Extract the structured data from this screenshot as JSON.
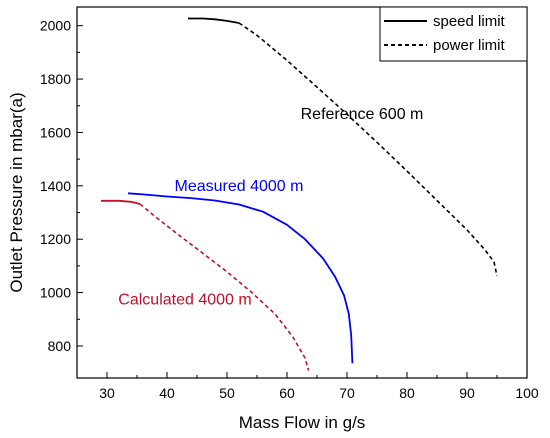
{
  "chart_data": {
    "type": "line",
    "title": "",
    "xlabel": "Mass Flow in g/s",
    "ylabel": "Outlet Pressure in mbar(a)",
    "xlim": [
      25,
      100
    ],
    "ylim": [
      680,
      2070
    ],
    "xticks": [
      30,
      40,
      50,
      60,
      70,
      80,
      90,
      100
    ],
    "yticks": [
      800,
      1000,
      1200,
      1400,
      1600,
      1800,
      2000
    ],
    "grid": false,
    "legend": {
      "placement": "top-right",
      "entries": [
        {
          "label": "speed limit",
          "style": "solid"
        },
        {
          "label": "power limit",
          "style": "dashed"
        }
      ]
    },
    "series": [
      {
        "annotation": "Reference 600 m",
        "color": "#000000",
        "style": "solid",
        "x": [
          43.5,
          46.0,
          48.0,
          50.0,
          52.0
        ],
        "y": [
          2027,
          2027,
          2024,
          2018,
          2010
        ]
      },
      {
        "annotation": "Reference 600 m",
        "color": "#000000",
        "style": "dashed",
        "x": [
          52.0,
          55.0,
          60.0,
          65.0,
          70.0,
          75.0,
          80.0,
          85.0,
          90.0,
          93.0,
          94.5,
          95.0
        ],
        "y": [
          2010,
          1964,
          1870,
          1770,
          1668,
          1563,
          1455,
          1345,
          1235,
          1160,
          1115,
          1062
        ]
      },
      {
        "annotation": "Measured 4000 m",
        "color": "#0000ff",
        "style": "solid",
        "x": [
          33.5,
          36.0,
          40.0,
          44.0,
          48.0,
          52.0,
          56.0,
          60.0,
          63.0,
          66.0,
          68.0,
          69.5,
          70.3,
          70.7,
          70.9
        ],
        "y": [
          1372,
          1368,
          1360,
          1354,
          1345,
          1330,
          1303,
          1254,
          1200,
          1128,
          1060,
          990,
          920,
          840,
          735
        ]
      },
      {
        "annotation": "Calculated 4000 m",
        "color": "#c0102a",
        "style": "solid",
        "x": [
          29.0,
          32.0,
          34.0,
          35.5
        ],
        "y": [
          1344,
          1344,
          1340,
          1332
        ]
      },
      {
        "annotation": "Calculated 4000 m",
        "color": "#c0102a",
        "style": "dashed",
        "x": [
          35.5,
          38.0,
          42.0,
          46.0,
          50.0,
          54.0,
          58.0,
          61.0,
          63.0,
          63.6
        ],
        "y": [
          1332,
          1285,
          1215,
          1147,
          1078,
          1003,
          920,
          833,
          755,
          708
        ]
      }
    ],
    "annotations": [
      {
        "text": "Reference 600 m",
        "x": 72.5,
        "y": 1650,
        "color": "#000000"
      },
      {
        "text": "Measured 4000 m",
        "x": 52.0,
        "y": 1380,
        "color": "#0000ff"
      },
      {
        "text": "Calculated 4000 m",
        "x": 43.0,
        "y": 955,
        "color": "#c0102a"
      }
    ]
  }
}
